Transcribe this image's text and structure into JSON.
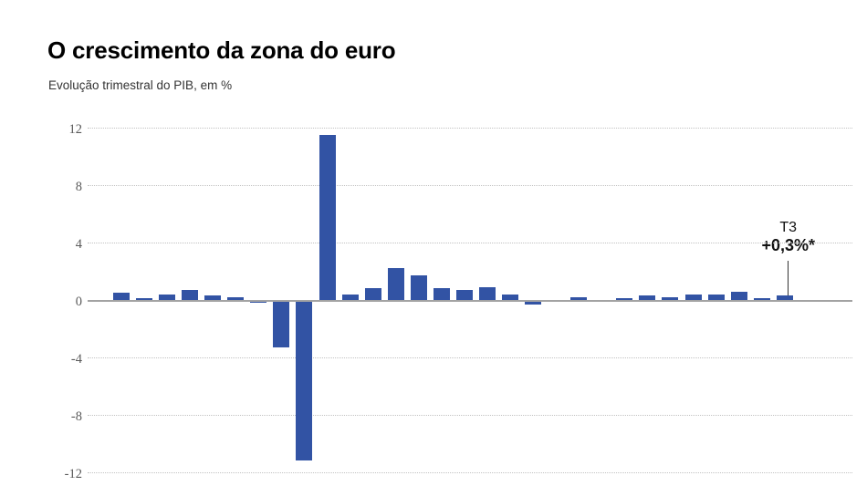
{
  "header": {
    "title": "O crescimento da zona do euro",
    "subtitle": "Evolução trimestral do PIB, em %"
  },
  "chart_data": {
    "type": "bar",
    "title": "O crescimento da zona do euro",
    "subtitle": "Evolução trimestral do PIB, em %",
    "unit": "%",
    "xlabel": "",
    "ylabel": "",
    "ylim": [
      -12,
      12
    ],
    "yticks": [
      12,
      8,
      4,
      0,
      -4,
      -8,
      -12
    ],
    "grid": "horizontal-dotted",
    "legend": "none",
    "num_bars": 30,
    "values": [
      0.5,
      0.1,
      0.4,
      0.7,
      0.3,
      0.2,
      -0.1,
      -3.2,
      -11.1,
      11.5,
      0.4,
      0.8,
      2.2,
      1.7,
      0.8,
      0.7,
      0.9,
      0.4,
      -0.2,
      0.0,
      0.2,
      0.0,
      0.1,
      0.3,
      0.2,
      0.4,
      0.4,
      0.6,
      0.1,
      0.3
    ],
    "annotation": {
      "line1": "T3",
      "line2": "+0,3%*",
      "bar_index": 29
    }
  },
  "colors": {
    "background": "#ffffff",
    "bar": "#3253a4",
    "grid_line": "#c2c2c2",
    "zero_line": "#a3a3a3",
    "tick_label": "#595959",
    "title": "#000000",
    "subtitle": "#333333",
    "annotation": "#111111"
  }
}
